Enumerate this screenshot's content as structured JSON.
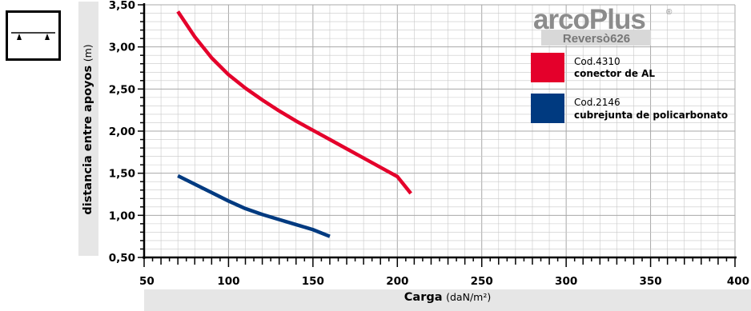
{
  "chart_data": {
    "type": "line",
    "title": "",
    "xlabel": "Carga",
    "xlabel_unit": "(daN/m²)",
    "ylabel": "distancia entre apoyos",
    "ylabel_unit": "(m)",
    "xlim": [
      50,
      400
    ],
    "ylim": [
      0.5,
      3.5
    ],
    "x_ticks": [
      "50",
      "100",
      "150",
      "200",
      "250",
      "300",
      "350",
      "400"
    ],
    "y_ticks": [
      "0,50",
      "1,00",
      "1,50",
      "2,00",
      "2,50",
      "3,00",
      "3,50"
    ],
    "grid": true,
    "legend_position": "top-right",
    "series": [
      {
        "name": "Cod.4310",
        "name_bold": "conector de AL",
        "color": "#e4002b",
        "x": [
          70,
          80,
          90,
          100,
          110,
          120,
          130,
          140,
          150,
          160,
          170,
          180,
          190,
          200,
          208
        ],
        "y": [
          3.42,
          3.12,
          2.87,
          2.67,
          2.51,
          2.37,
          2.24,
          2.12,
          2.01,
          1.9,
          1.79,
          1.68,
          1.57,
          1.46,
          1.26
        ]
      },
      {
        "name": "Cod.2146",
        "name_bold": "cubrejunta de policarbonato",
        "color": "#003a80",
        "x": [
          70,
          80,
          90,
          100,
          110,
          120,
          130,
          140,
          150,
          160
        ],
        "y": [
          1.47,
          1.37,
          1.27,
          1.17,
          1.08,
          1.01,
          0.95,
          0.89,
          0.83,
          0.75
        ]
      }
    ]
  },
  "logo": {
    "brand": "arcoPlus",
    "registered": "®",
    "product": "Reversò626"
  },
  "icon": "simply-supported-beam-icon"
}
